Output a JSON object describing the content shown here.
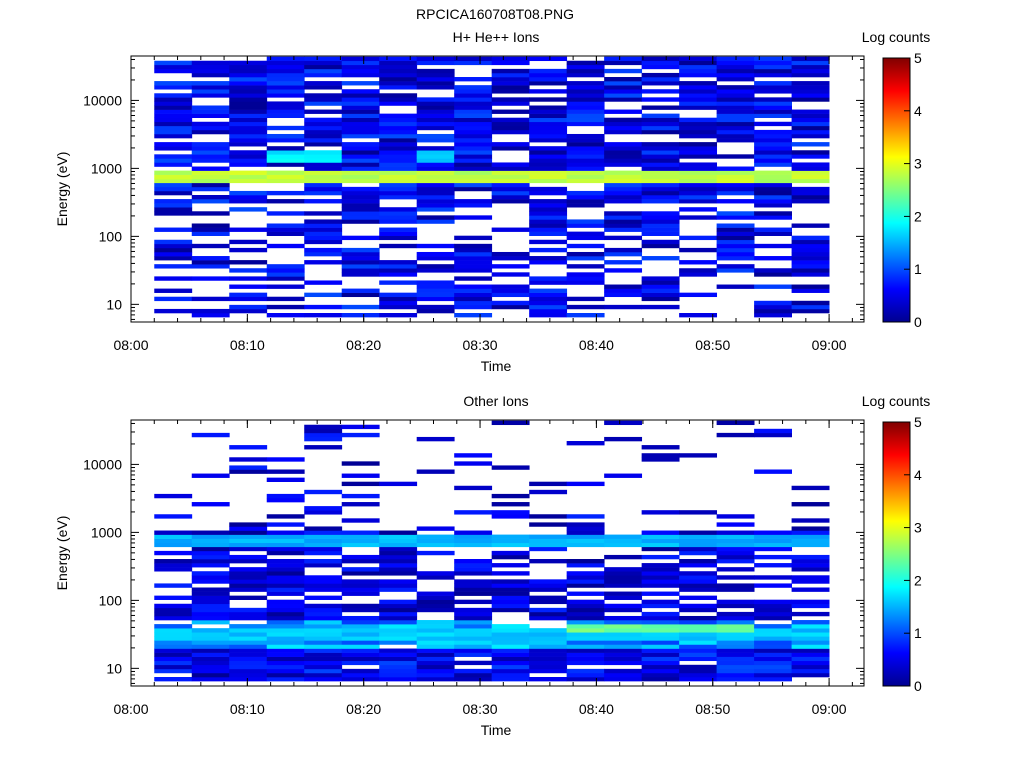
{
  "figure_title": "RPCICA160708T08.PNG",
  "chart_data": [
    {
      "type": "heatmap",
      "title": "H+ He++ Ions",
      "xlabel": "Time",
      "ylabel": "Energy (eV)",
      "x_ticks": [
        "08:00",
        "08:10",
        "08:20",
        "08:30",
        "08:40",
        "08:50",
        "09:00"
      ],
      "x_range": [
        "08:00",
        "09:03"
      ],
      "data_range": [
        "08:02",
        "09:00"
      ],
      "y_scale": "log",
      "y_ticks": [
        10,
        100,
        1000,
        10000
      ],
      "y_range_eV": [
        5.5,
        45000
      ],
      "colorbar": {
        "label": "Log counts",
        "min": 0,
        "max": 5,
        "ticks": [
          0,
          1,
          2,
          3,
          4,
          5
        ]
      },
      "time_bins": 18,
      "energy_bins_observed_eV": [
        6.5,
        44000
      ],
      "features": [
        {
          "energy_eV": 750,
          "log_counts": 2.8,
          "description": "persistent band"
        },
        {
          "energy_eV": 1500,
          "log_counts": 1.8,
          "time_range": [
            "08:13",
            "08:17"
          ]
        },
        {
          "energy_eV": 1500,
          "log_counts": 1.6,
          "time_range": [
            "08:25",
            "08:28"
          ]
        }
      ],
      "background_log_counts": [
        0.1,
        1.0
      ]
    },
    {
      "type": "heatmap",
      "title": "Other Ions",
      "xlabel": "Time",
      "ylabel": "Energy (eV)",
      "x_ticks": [
        "08:00",
        "08:10",
        "08:20",
        "08:30",
        "08:40",
        "08:50",
        "09:00"
      ],
      "x_range": [
        "08:00",
        "09:03"
      ],
      "data_range": [
        "08:02",
        "09:00"
      ],
      "y_scale": "log",
      "y_ticks": [
        10,
        100,
        1000,
        10000
      ],
      "y_range_eV": [
        5.5,
        45000
      ],
      "colorbar": {
        "label": "Log counts",
        "min": 0,
        "max": 5,
        "ticks": [
          0,
          1,
          2,
          3,
          4,
          5
        ]
      },
      "time_bins": 18,
      "features": [
        {
          "energy_eV": 750,
          "log_counts": 1.5,
          "description": "persistent band"
        },
        {
          "energy_eV": 32,
          "log_counts": 1.6,
          "description": "persistent band, peaks ~2.6 near 08:40-08:50"
        },
        {
          "energy_eV": 40,
          "log_counts": 2.4,
          "time_range": [
            "08:38",
            "08:55"
          ]
        }
      ],
      "background_log_counts": [
        0.1,
        0.8
      ]
    }
  ]
}
